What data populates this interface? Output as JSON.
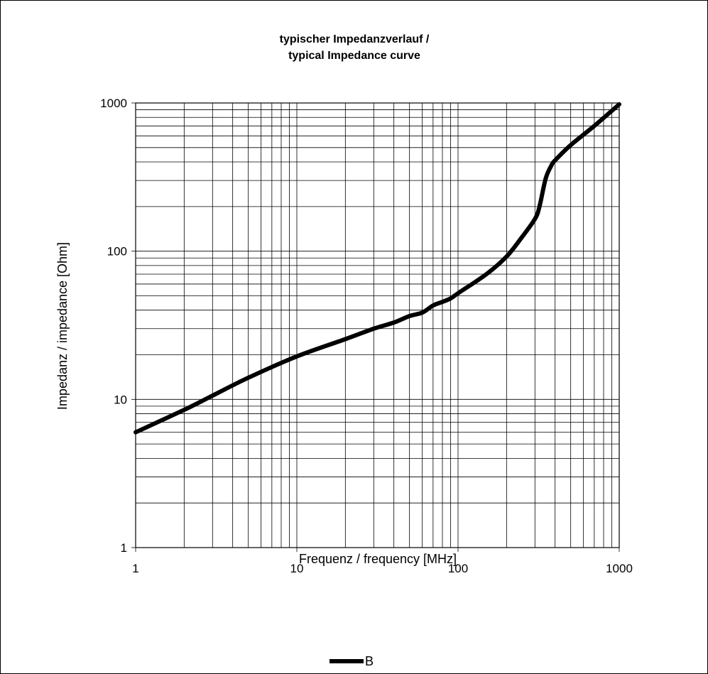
{
  "chart_data": {
    "type": "line",
    "title": "typischer Impedanzverlauf /",
    "subtitle": "typical Impedance curve",
    "xlabel": "Frequenz / frequency [MHz]",
    "ylabel": "Impedanz / impedance [Ohm]",
    "x_scale": "log",
    "y_scale": "log",
    "xlim": [
      1,
      1000
    ],
    "ylim": [
      1,
      1000
    ],
    "x_ticks": [
      1,
      10,
      100,
      1000
    ],
    "y_ticks": [
      1,
      10,
      100,
      1000
    ],
    "x_tick_labels": [
      "1",
      "10",
      "100",
      "1000"
    ],
    "y_tick_labels": [
      "1",
      "10",
      "100",
      "1000"
    ],
    "grid": true,
    "legend_position": "bottom",
    "series": [
      {
        "name": "B",
        "color": "#000000",
        "x": [
          1,
          2,
          3,
          5,
          10,
          20,
          30,
          40,
          50,
          60,
          70,
          80,
          90,
          100,
          150,
          200,
          250,
          300,
          320,
          350,
          380,
          400,
          500,
          700,
          1000
        ],
        "y": [
          6,
          8.5,
          10.6,
          14,
          19.5,
          25.5,
          30,
          33,
          36.5,
          38.5,
          43,
          45.5,
          48,
          52,
          70,
          92,
          125,
          165,
          200,
          310,
          380,
          410,
          520,
          700,
          980
        ]
      }
    ]
  }
}
